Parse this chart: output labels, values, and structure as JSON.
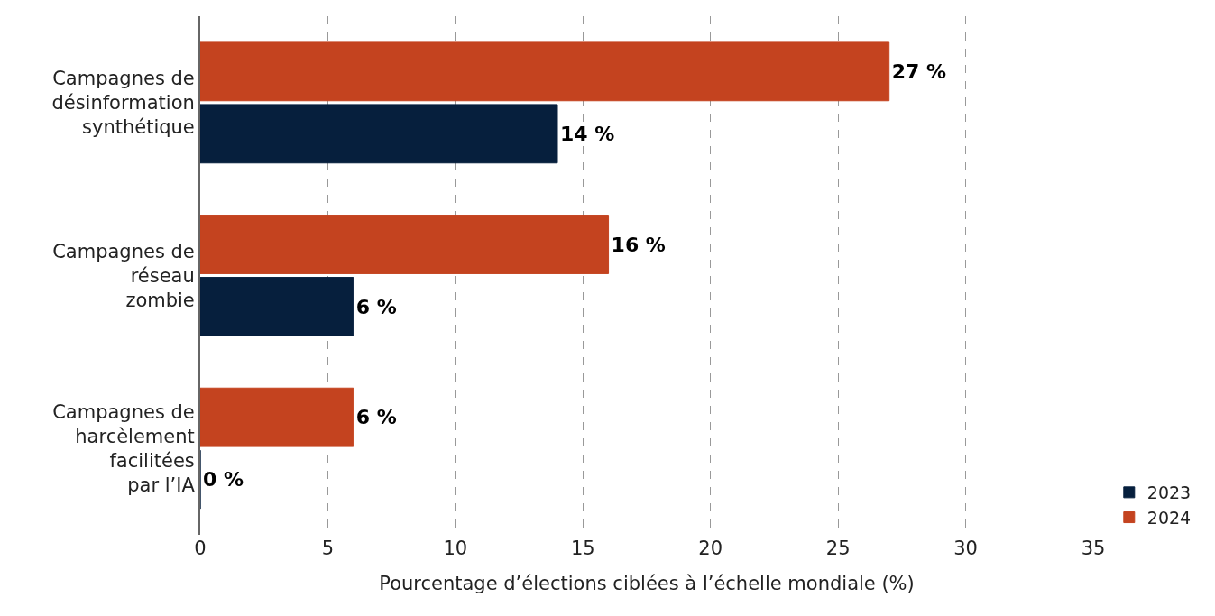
{
  "chart_data": {
    "type": "bar",
    "orientation": "horizontal",
    "xlabel": "Pourcentage d’élections ciblées à l’échelle mondiale (%)",
    "categories": [
      "Campagnes de désinformation synthétique",
      "Campagnes de réseau zombie",
      "Campagnes de harcèlement facilitées par l’IA"
    ],
    "series": [
      {
        "name": "2023",
        "color": "#061f3d",
        "values": [
          14,
          6,
          0
        ],
        "value_labels": [
          "14 %",
          "6 %",
          "0 %"
        ]
      },
      {
        "name": "2024",
        "color": "#c4431f",
        "values": [
          27,
          16,
          6
        ],
        "value_labels": [
          "27 %",
          "16 %",
          "6 %"
        ]
      }
    ],
    "xlim": [
      0,
      35
    ],
    "xticks": [
      0,
      5,
      10,
      15,
      20,
      25,
      30,
      35
    ],
    "grid": "x",
    "legend": "bottom right"
  }
}
